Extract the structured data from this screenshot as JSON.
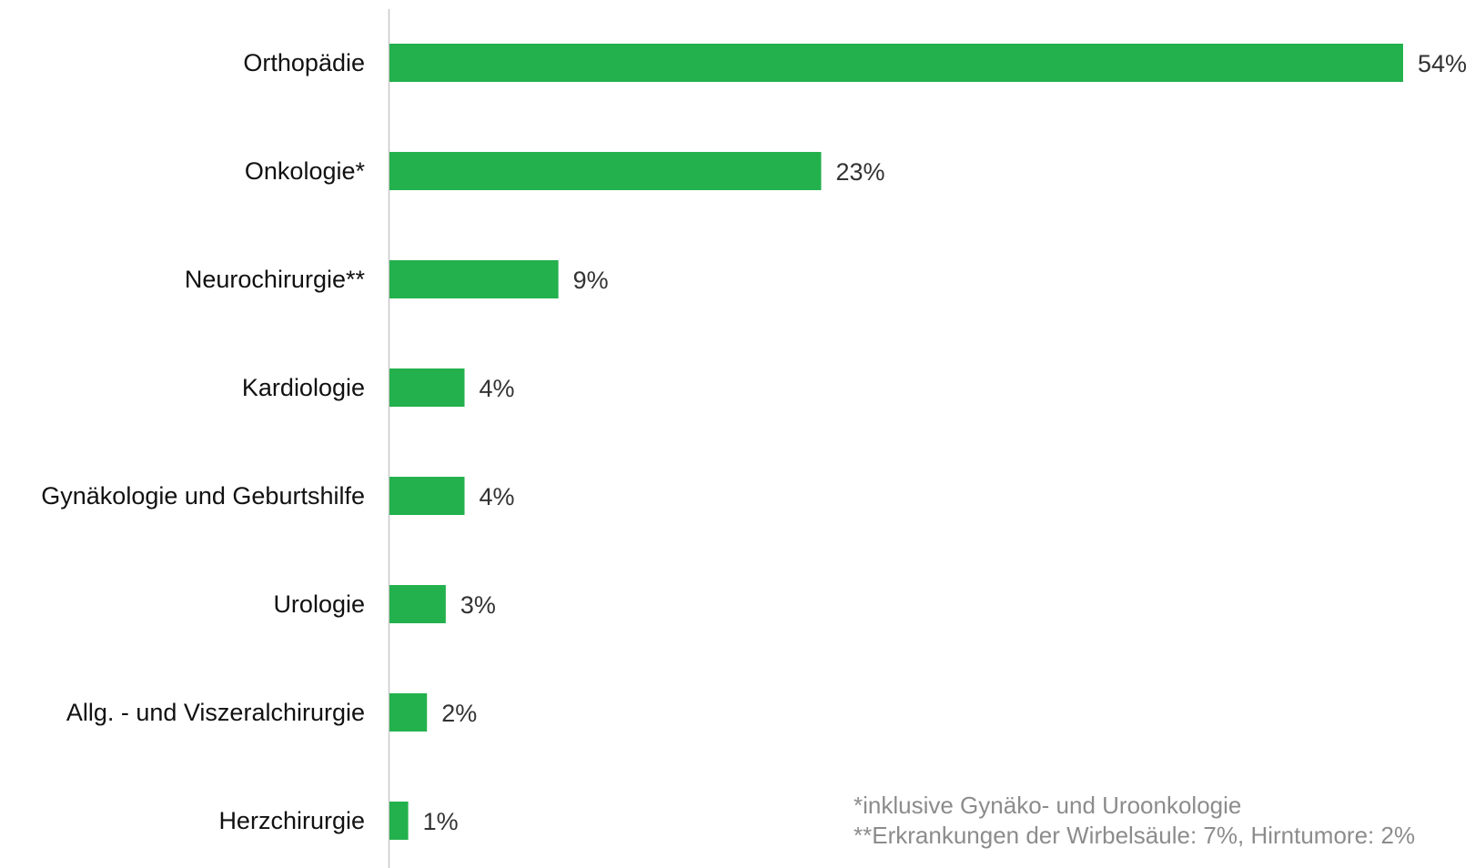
{
  "chart_data": {
    "type": "bar",
    "orientation": "horizontal",
    "categories": [
      "Orthopädie",
      "Onkologie*",
      "Neurochirurgie**",
      "Kardiologie",
      "Gynäkologie und Geburtshilfe",
      "Urologie",
      "Allg. - und Viszeralchirurgie",
      "Herzchirurgie"
    ],
    "values": [
      54,
      23,
      9,
      4,
      4,
      3,
      2,
      1
    ],
    "value_labels": [
      "54%",
      "23%",
      "9%",
      "4%",
      "4%",
      "3%",
      "2%",
      "1%"
    ],
    "unit": "%",
    "xlim": [
      0,
      54
    ],
    "grid": false,
    "legend": "none",
    "bar_color": "#23b14d",
    "axis_color": "#c8c8c8",
    "footnotes": [
      "*inklusive Gynäko- und Uroonkologie",
      "**Erkrankungen der Wirbelsäule: 7%, Hirntumore: 2%"
    ]
  }
}
